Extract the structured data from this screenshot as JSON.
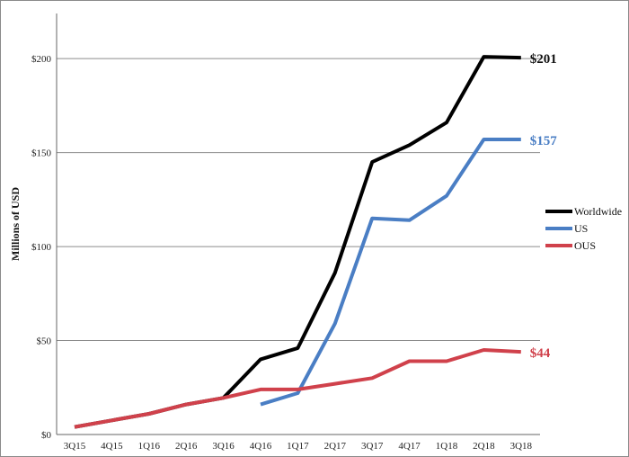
{
  "chart_data": {
    "type": "line",
    "title": "",
    "xlabel": "",
    "ylabel": "Millions of USD",
    "categories": [
      "3Q15",
      "4Q15",
      "1Q16",
      "2Q16",
      "3Q16",
      "4Q16",
      "1Q17",
      "2Q17",
      "3Q17",
      "4Q17",
      "1Q18",
      "2Q18",
      "3Q18"
    ],
    "ylim": [
      0,
      224
    ],
    "yticks": [
      0,
      50,
      100,
      150,
      200
    ],
    "ytick_labels": [
      "$0",
      "$50",
      "$100",
      "$150",
      "$200"
    ],
    "grid": true,
    "legend_position": "right",
    "series": [
      {
        "name": "Worldwide",
        "color": "#000000",
        "values": [
          4,
          7.5,
          11,
          16,
          19.5,
          40,
          46,
          86,
          145,
          154,
          166,
          201,
          200.5
        ],
        "end_label": "$201"
      },
      {
        "name": "US",
        "color": "#4a7ec4",
        "values": [
          null,
          null,
          null,
          null,
          null,
          16,
          22,
          59,
          115,
          114,
          127,
          157,
          157
        ],
        "end_label": "$157"
      },
      {
        "name": "OUS",
        "color": "#d0414b",
        "values": [
          4,
          7.5,
          11,
          16,
          19.5,
          24,
          24,
          27,
          30,
          39,
          39,
          45,
          44
        ],
        "end_label": "$44"
      }
    ]
  }
}
